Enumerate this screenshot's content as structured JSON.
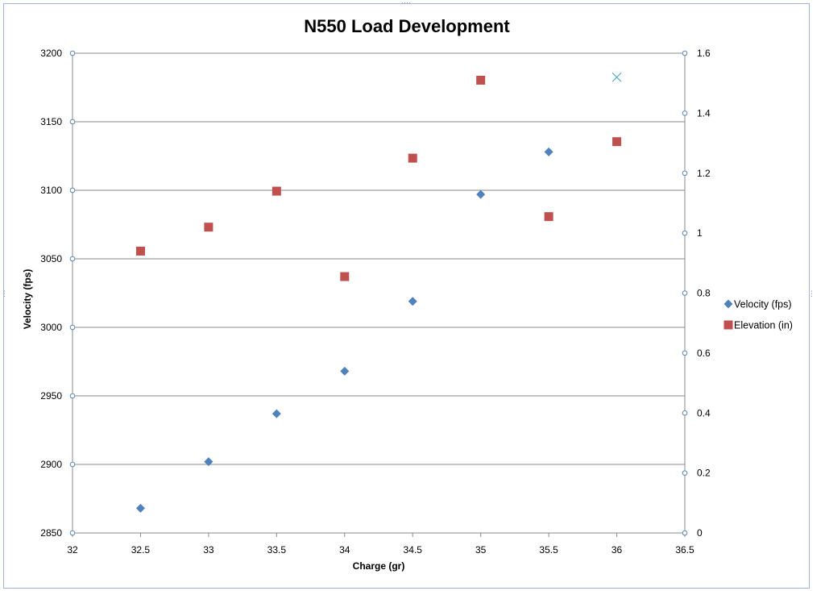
{
  "chart_data": {
    "type": "scatter",
    "title": "N550 Load Development",
    "xlabel": "Charge (gr)",
    "ylabel": "Velocity (fps)",
    "y2label": "",
    "xlim": [
      32,
      36.5
    ],
    "ylim": [
      2850,
      3200
    ],
    "y2lim": [
      0,
      1.6
    ],
    "xticks": [
      "32",
      "32.5",
      "33",
      "33.5",
      "34",
      "34.5",
      "35",
      "35.5",
      "36",
      "36.5"
    ],
    "yticks": [
      "2850",
      "2900",
      "2950",
      "3000",
      "3050",
      "3100",
      "3150",
      "3200"
    ],
    "y2ticks": [
      "0",
      "0.2",
      "0.4",
      "0.6",
      "0.8",
      "1",
      "1.2",
      "1.4",
      "1.6"
    ],
    "grid": true,
    "legend_position": "right",
    "series": [
      {
        "name": "Velocity (fps)",
        "axis": "left",
        "marker": "diamond",
        "color": "#4f81bd",
        "x": [
          32.5,
          33,
          33.5,
          34,
          34.5,
          35,
          35.5
        ],
        "y": [
          2868,
          2902,
          2937,
          2968,
          3019,
          3097,
          3128
        ]
      },
      {
        "name": "Elevation (in)",
        "axis": "right",
        "marker": "square",
        "color": "#c0504d",
        "x": [
          32.5,
          33,
          33.5,
          34,
          34.5,
          35,
          35.5,
          36
        ],
        "y": [
          0.94,
          1.02,
          1.14,
          0.855,
          1.25,
          1.51,
          1.055,
          1.305
        ]
      },
      {
        "name": "",
        "axis": "right",
        "marker": "x",
        "color": "#4bacc6",
        "x": [
          36
        ],
        "y": [
          1.52
        ]
      }
    ]
  }
}
